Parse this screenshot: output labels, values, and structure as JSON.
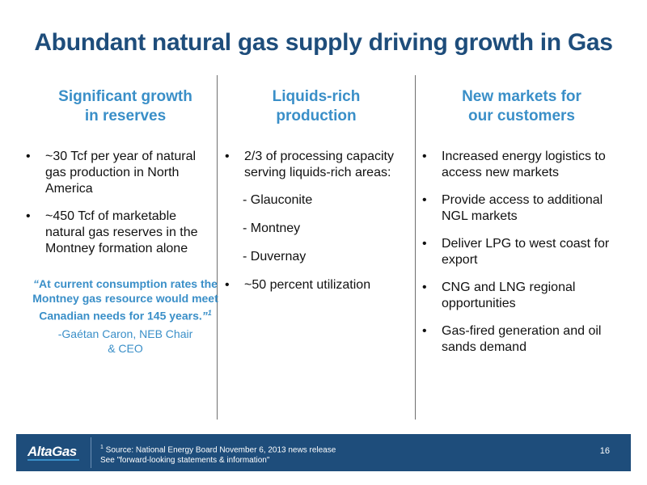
{
  "title": "Abundant natural gas supply driving growth in Gas",
  "columns": [
    {
      "heading_line1": "Significant growth",
      "heading_line2": "in reserves",
      "bullets": [
        "~30 Tcf per year of natural gas production in North America",
        "~450 Tcf of marketable natural gas reserves in the Montney formation alone"
      ],
      "quote": {
        "open": "“",
        "text": "At current consumption rates the Montney gas resource would meet Canadian needs for 145 years.",
        "close": "”",
        "footnote": "1",
        "attribution_line1": "-Gaétan Caron, NEB Chair",
        "attribution_line2": "& CEO"
      }
    },
    {
      "heading_line1": "Liquids-rich",
      "heading_line2": "production",
      "bullet1": "2/3 of processing capacity serving liquids-rich areas:",
      "sub_items": [
        "- Glauconite",
        "- Montney",
        "- Duvernay"
      ],
      "bullet2": "~50 percent utilization"
    },
    {
      "heading_line1": "New markets for",
      "heading_line2": "our customers",
      "bullets": [
        "Increased energy logistics to access new markets",
        "Provide access to additional NGL markets",
        "Deliver LPG to west coast for export",
        "CNG and LNG regional opportunities",
        "Gas-fired generation and oil sands demand"
      ]
    }
  ],
  "footer": {
    "logo": "AltaGas",
    "footnote_mark": "1",
    "source_line1": " Source: National Energy Board November 6, 2013 news release",
    "source_line2": "See \"forward-looking statements & information\"",
    "page_number": "16"
  },
  "colors": {
    "title": "#1e4d7b",
    "heading": "#3a8fc8",
    "footer_bg": "#1e4d7b"
  }
}
